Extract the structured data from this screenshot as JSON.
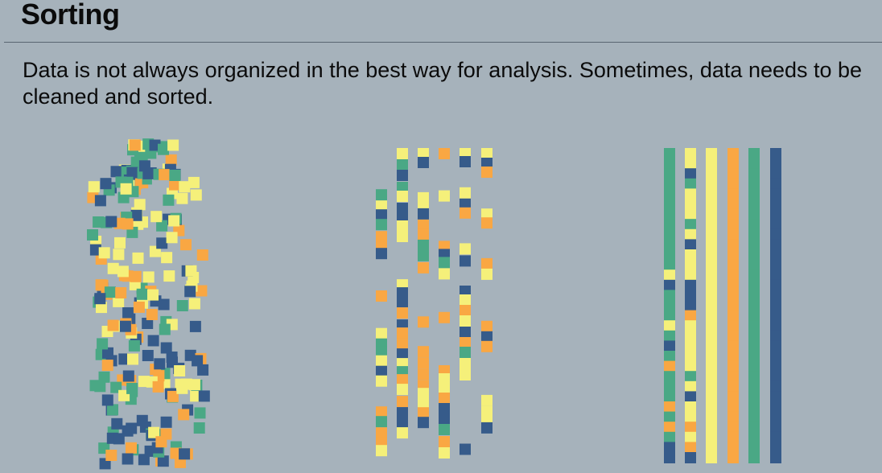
{
  "header": {
    "title": "Sorting"
  },
  "intro": {
    "text": "Data is not always organized in the best way for analysis. Sometimes, data needs to be cleaned and sorted."
  },
  "palette": {
    "navy": "#365b8a",
    "teal": "#4aa885",
    "yellow": "#f5f07a",
    "orange": "#f9a743",
    "background": "#a6b2bb"
  },
  "illustration": {
    "stages": [
      "scattered",
      "grouped-into-columns",
      "sorted-by-color"
    ],
    "category_colors": [
      "teal",
      "yellow",
      "yellow",
      "orange",
      "teal",
      "navy"
    ]
  }
}
